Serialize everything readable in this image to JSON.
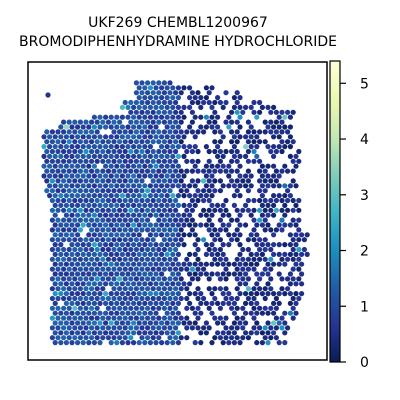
{
  "chart_data": {
    "type": "heatmap",
    "title": "UKF269 CHEMBL1200967",
    "subtitle": "BROMODIPHENHYDRAMINE HYDROCHLORIDE",
    "xlabel": "",
    "ylabel": "",
    "grid": false,
    "colormap": "YlGnBu",
    "colorbar": {
      "range": [
        0,
        5.4
      ],
      "ticks": [
        0,
        1,
        2,
        3,
        4,
        5
      ],
      "tick_labels": [
        "0",
        "1",
        "2",
        "3",
        "4",
        "5"
      ]
    },
    "colors": {
      "background_spot": "#0b1a5e",
      "low": "#081d58",
      "mid": "#2c7fb8",
      "high": "#ffffd9",
      "frame": "#000000"
    },
    "spots": {
      "dominant_value_left_region": 1.1,
      "dominant_value_right_region": 0.6,
      "notable_high_values": [
        2.9,
        3.1,
        3.4,
        2.5,
        2.2,
        3.6,
        2.8
      ]
    }
  }
}
